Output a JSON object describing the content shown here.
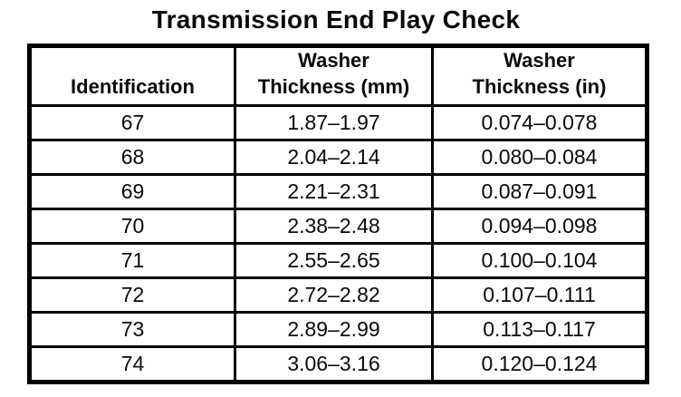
{
  "title": "Transmission End Play Check",
  "table": {
    "headers": [
      {
        "lines": [
          "Identification"
        ]
      },
      {
        "lines": [
          "Washer",
          "Thickness (mm)"
        ]
      },
      {
        "lines": [
          "Washer",
          "Thickness (in)"
        ]
      }
    ],
    "rows": [
      [
        "67",
        "1.87–1.97",
        "0.074–0.078"
      ],
      [
        "68",
        "2.04–2.14",
        "0.080–0.084"
      ],
      [
        "69",
        "2.21–2.31",
        "0.087–0.091"
      ],
      [
        "70",
        "2.38–2.48",
        "0.094–0.098"
      ],
      [
        "71",
        "2.55–2.65",
        "0.100–0.104"
      ],
      [
        "72",
        "2.72–2.82",
        "0.107–0.111"
      ],
      [
        "73",
        "2.89–2.99",
        "0.113–0.117"
      ],
      [
        "74",
        "3.06–3.16",
        "0.120–0.124"
      ]
    ]
  },
  "colors": {
    "background": "#ffffff",
    "border": "#000000",
    "text": "#0a0a0a"
  }
}
